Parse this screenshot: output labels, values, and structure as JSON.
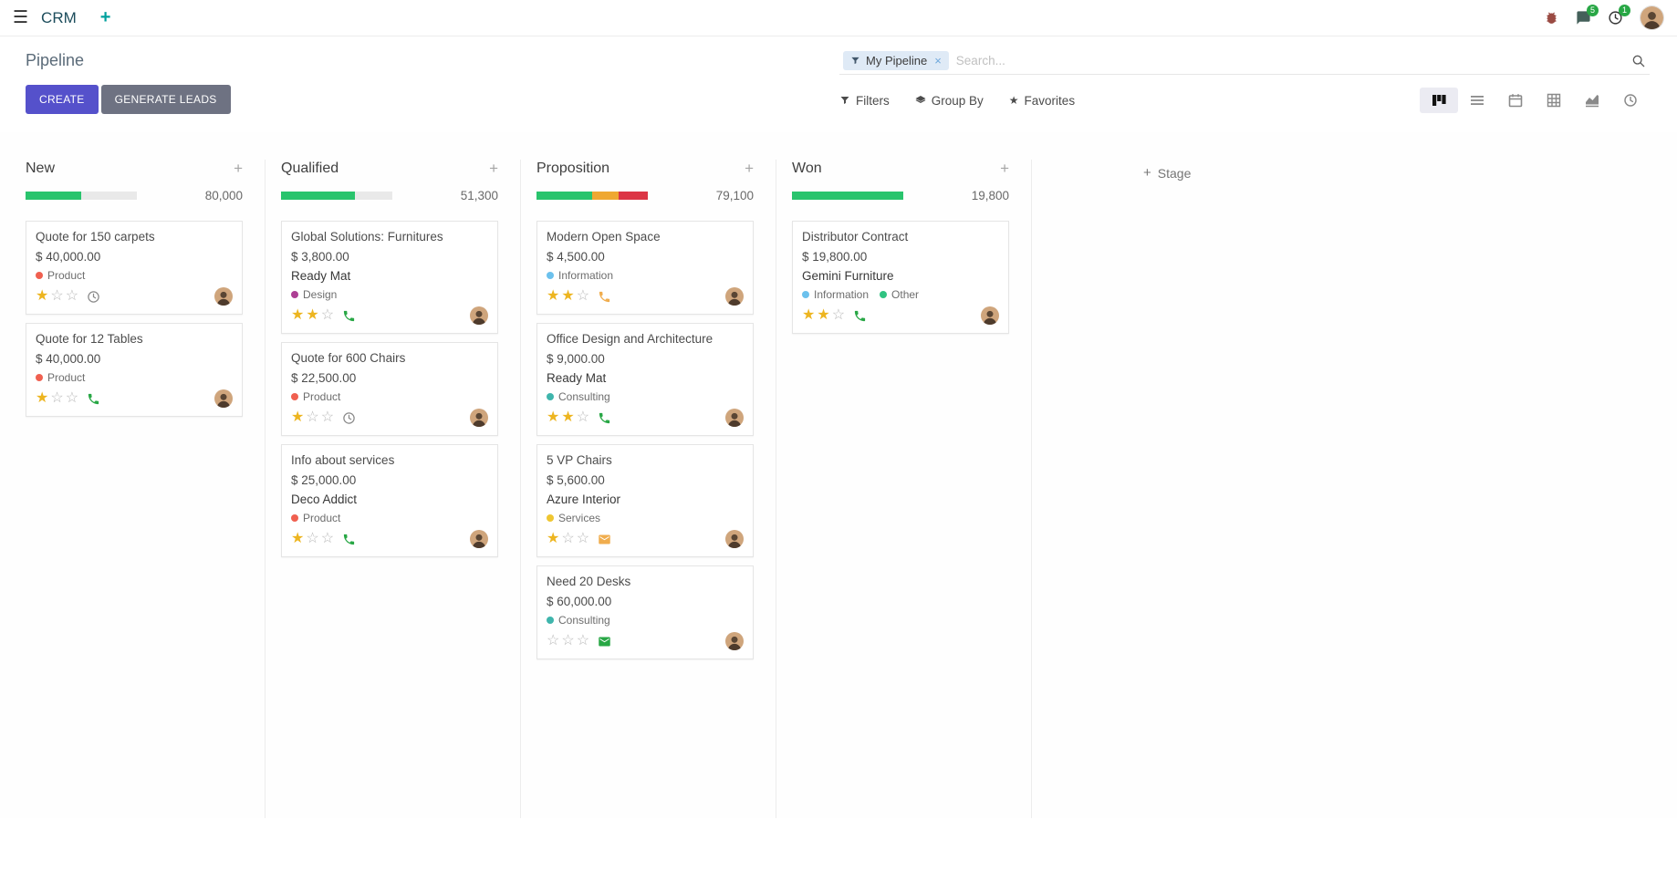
{
  "icons": {
    "hamburger": "☰",
    "plus": "+",
    "star": "★",
    "close": "×"
  },
  "colors": {
    "primary_button": "#5551cb",
    "secondary_button": "#6e7282",
    "badge_green": "#28a745"
  },
  "navbar": {
    "app_name": "CRM",
    "messages_badge": "5",
    "activities_badge": "1"
  },
  "control_panel": {
    "title": "Pipeline",
    "create_label": "CREATE",
    "generate_leads_label": "GENERATE LEADS",
    "filters_label": "Filters",
    "group_by_label": "Group By",
    "favorites_label": "Favorites",
    "search": {
      "facet": "My Pipeline",
      "placeholder": "Search..."
    }
  },
  "board": {
    "add_stage_label": "Stage",
    "columns": [
      {
        "name": "New",
        "total": "80,000",
        "progress": [
          {
            "color": "#29c46d",
            "pct": 50
          }
        ],
        "cards": [
          {
            "title": "Quote for 150 carpets",
            "amount": "$ 40,000.00",
            "tags": [
              {
                "label": "Product",
                "color": "#f06050"
              }
            ],
            "stars": 1,
            "activity": {
              "icon": "clock",
              "color": "#8a8a8a"
            }
          },
          {
            "title": "Quote for 12 Tables",
            "amount": "$ 40,000.00",
            "tags": [
              {
                "label": "Product",
                "color": "#f06050"
              }
            ],
            "stars": 1,
            "activity": {
              "icon": "phone",
              "color": "#28a745"
            }
          }
        ]
      },
      {
        "name": "Qualified",
        "total": "51,300",
        "progress": [
          {
            "color": "#29c46d",
            "pct": 66
          }
        ],
        "cards": [
          {
            "title": "Global Solutions: Furnitures",
            "amount": "$ 3,800.00",
            "partner": "Ready Mat",
            "tags": [
              {
                "label": "Design",
                "color": "#ad3f94"
              }
            ],
            "stars": 2,
            "activity": {
              "icon": "phone",
              "color": "#28a745"
            }
          },
          {
            "title": "Quote for 600 Chairs",
            "amount": "$ 22,500.00",
            "tags": [
              {
                "label": "Product",
                "color": "#f06050"
              }
            ],
            "stars": 1,
            "activity": {
              "icon": "clock",
              "color": "#8a8a8a"
            }
          },
          {
            "title": "Info about services",
            "amount": "$ 25,000.00",
            "partner": "Deco Addict",
            "tags": [
              {
                "label": "Product",
                "color": "#f06050"
              }
            ],
            "stars": 1,
            "activity": {
              "icon": "phone",
              "color": "#28a745"
            }
          }
        ]
      },
      {
        "name": "Proposition",
        "total": "79,100",
        "progress": [
          {
            "color": "#29c46d",
            "pct": 50
          },
          {
            "color": "#efa832",
            "pct": 24
          },
          {
            "color": "#dc3545",
            "pct": 26
          }
        ],
        "cards": [
          {
            "title": "Modern Open Space",
            "amount": "$ 4,500.00",
            "tags": [
              {
                "label": "Information",
                "color": "#6cc1ed"
              }
            ],
            "stars": 2,
            "activity": {
              "icon": "phone",
              "color": "#f0ad4e"
            }
          },
          {
            "title": "Office Design and Architecture",
            "amount": "$ 9,000.00",
            "partner": "Ready Mat",
            "tags": [
              {
                "label": "Consulting",
                "color": "#3fb5ac"
              }
            ],
            "stars": 2,
            "activity": {
              "icon": "phone",
              "color": "#28a745"
            }
          },
          {
            "title": "5 VP Chairs",
            "amount": "$ 5,600.00",
            "partner": "Azure Interior",
            "tags": [
              {
                "label": "Services",
                "color": "#efc631"
              }
            ],
            "stars": 1,
            "activity": {
              "icon": "envelope",
              "color": "#f0ad4e"
            }
          },
          {
            "title": "Need 20 Desks",
            "amount": "$ 60,000.00",
            "tags": [
              {
                "label": "Consulting",
                "color": "#3fb5ac"
              }
            ],
            "stars": 0,
            "activity": {
              "icon": "envelope",
              "color": "#28a745"
            }
          }
        ]
      },
      {
        "name": "Won",
        "total": "19,800",
        "progress": [
          {
            "color": "#29c46d",
            "pct": 100
          }
        ],
        "cards": [
          {
            "title": "Distributor Contract",
            "amount": "$ 19,800.00",
            "partner": "Gemini Furniture",
            "tags": [
              {
                "label": "Information",
                "color": "#6cc1ed"
              },
              {
                "label": "Other",
                "color": "#30c381"
              }
            ],
            "stars": 2,
            "activity": {
              "icon": "phone",
              "color": "#28a745"
            }
          }
        ]
      }
    ]
  }
}
